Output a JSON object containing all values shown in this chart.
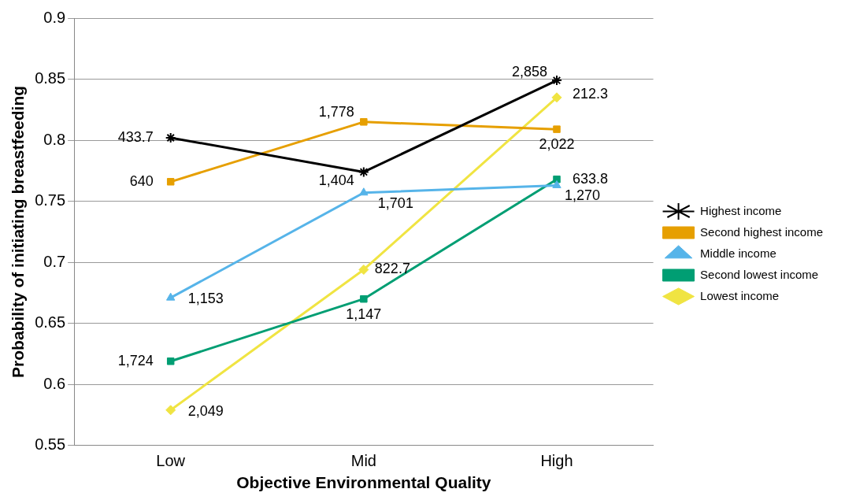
{
  "chart_data": {
    "type": "line",
    "xlabel": "Objective Environmental Quality",
    "ylabel": "Probability of initiating breastfeeding",
    "categories": [
      "Low",
      "Mid",
      "High"
    ],
    "series": [
      {
        "name": "Highest income",
        "color": "#000000",
        "marker": "cross",
        "values": [
          0.802,
          0.774,
          0.849
        ]
      },
      {
        "name": "Second highest income",
        "color": "#e69f00",
        "marker": "square",
        "values": [
          0.766,
          0.815,
          0.809
        ]
      },
      {
        "name": "Middle income",
        "color": "#56b4e9",
        "marker": "triangle",
        "values": [
          0.671,
          0.757,
          0.763
        ]
      },
      {
        "name": "Second lowest income",
        "color": "#009e73",
        "marker": "square",
        "values": [
          0.619,
          0.67,
          0.768
        ]
      },
      {
        "name": "Lowest income",
        "color": "#f0e442",
        "marker": "diamond",
        "values": [
          0.579,
          0.694,
          0.835
        ]
      }
    ],
    "ylim": [
      0.55,
      0.9
    ],
    "yticks": [
      0.55,
      0.6,
      0.65,
      0.7,
      0.75,
      0.8,
      0.85,
      0.9
    ],
    "grid": "y",
    "legend": "right",
    "annotations": [
      {
        "text": "433.7",
        "x": "Low",
        "y": 0.802
      },
      {
        "text": "1,404",
        "x": "Mid",
        "y": 0.774
      },
      {
        "text": "2,858",
        "x": "High",
        "y": 0.849
      },
      {
        "text": "640",
        "x": "Low",
        "y": 0.766
      },
      {
        "text": "1,778",
        "x": "Mid",
        "y": 0.815
      },
      {
        "text": "2,022",
        "x": "High",
        "y": 0.809
      },
      {
        "text": "1,153",
        "x": "Low",
        "y": 0.671
      },
      {
        "text": "1,701",
        "x": "Mid",
        "y": 0.757
      },
      {
        "text": "1,270",
        "x": "High",
        "y": 0.763
      },
      {
        "text": "1,724",
        "x": "Low",
        "y": 0.619
      },
      {
        "text": "1,147",
        "x": "Mid",
        "y": 0.67
      },
      {
        "text": "633.8",
        "x": "High",
        "y": 0.768
      },
      {
        "text": "2,049",
        "x": "Low",
        "y": 0.579
      },
      {
        "text": "822.7",
        "x": "Mid",
        "y": 0.694
      },
      {
        "text": "212.3",
        "x": "High",
        "y": 0.835
      }
    ]
  }
}
